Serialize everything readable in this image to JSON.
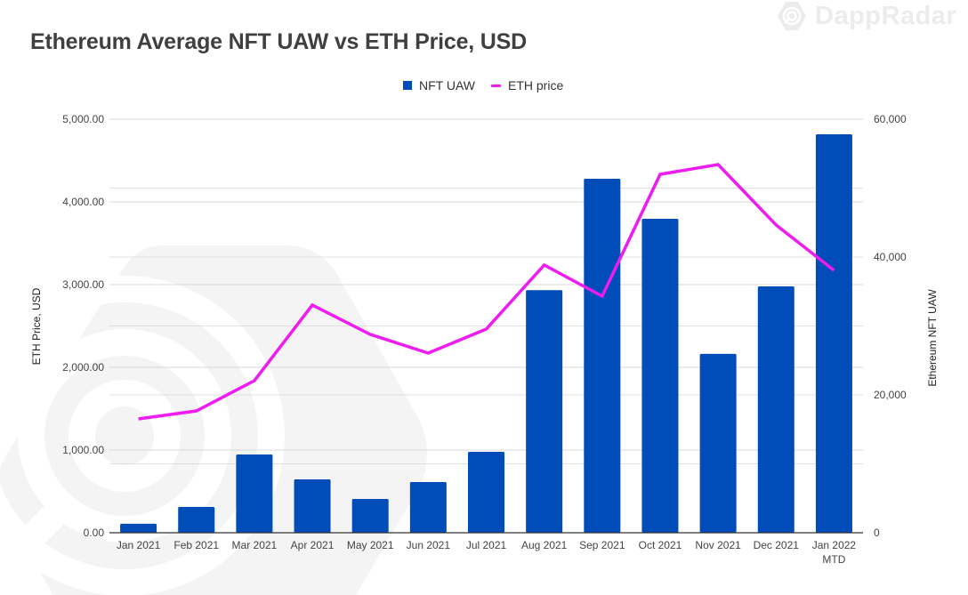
{
  "header": {
    "title": "Ethereum Average NFT UAW vs ETH Price, USD",
    "brand": "DappRadar",
    "brand_icon": "dappradar-logo-icon"
  },
  "colors": {
    "bar": "#004cb8",
    "line": "#ee1cf0",
    "grid": "#d9d9d9",
    "axis": "#333333",
    "title": "#3f3f3f",
    "watermark": "#f4f4f5"
  },
  "chart_data": {
    "type": "bar+line",
    "title": "Ethereum Average NFT UAW vs ETH Price, USD",
    "categories": [
      "Jan 2021",
      "Feb 2021",
      "Mar 2021",
      "Apr 2021",
      "May 2021",
      "Jun 2021",
      "Jul 2021",
      "Aug 2021",
      "Sep 2021",
      "Oct 2021",
      "Nov 2021",
      "Dec 2021",
      "Jan 2022\nMTD"
    ],
    "category_labels": [
      [
        "Jan 2021"
      ],
      [
        "Feb 2021"
      ],
      [
        "Mar 2021"
      ],
      [
        "Apr 2021"
      ],
      [
        "May 2021"
      ],
      [
        "Jun 2021"
      ],
      [
        "Jul 2021"
      ],
      [
        "Aug 2021"
      ],
      [
        "Sep 2021"
      ],
      [
        "Oct 2021"
      ],
      [
        "Nov 2021"
      ],
      [
        "Dec 2021"
      ],
      [
        "Jan 2022",
        "MTD"
      ]
    ],
    "series": [
      {
        "name": "NFT UAW",
        "type": "bar",
        "axis": "right",
        "values": [
          1300,
          3750,
          11350,
          7750,
          4900,
          7350,
          11750,
          35200,
          51350,
          45550,
          25950,
          35750,
          57800
        ]
      },
      {
        "name": "ETH price",
        "type": "line",
        "axis": "left",
        "values": [
          1376,
          1473,
          1839,
          2753,
          2398,
          2172,
          2462,
          3237,
          2860,
          4333,
          4452,
          3720,
          3172
        ]
      }
    ],
    "left_axis": {
      "label": "ETH Price, USD",
      "range": [
        0,
        5000
      ],
      "ticks": [
        0,
        1000,
        2000,
        3000,
        4000,
        5000
      ],
      "tick_labels": [
        "0.00",
        "1,000.00",
        "2,000.00",
        "3,000.00",
        "4,000.00",
        "5,000.00"
      ]
    },
    "right_axis": {
      "label": "Ethereum NFT UAW",
      "range": [
        0,
        60000
      ],
      "ticks": [
        0,
        20000,
        40000,
        60000
      ],
      "tick_labels": [
        "0",
        "20,000",
        "40,000",
        "60,000"
      ]
    },
    "grid": true,
    "legend": {
      "placement": "top-center",
      "items": [
        {
          "label": "NFT UAW",
          "kind": "bar"
        },
        {
          "label": "ETH price",
          "kind": "line"
        }
      ]
    }
  }
}
